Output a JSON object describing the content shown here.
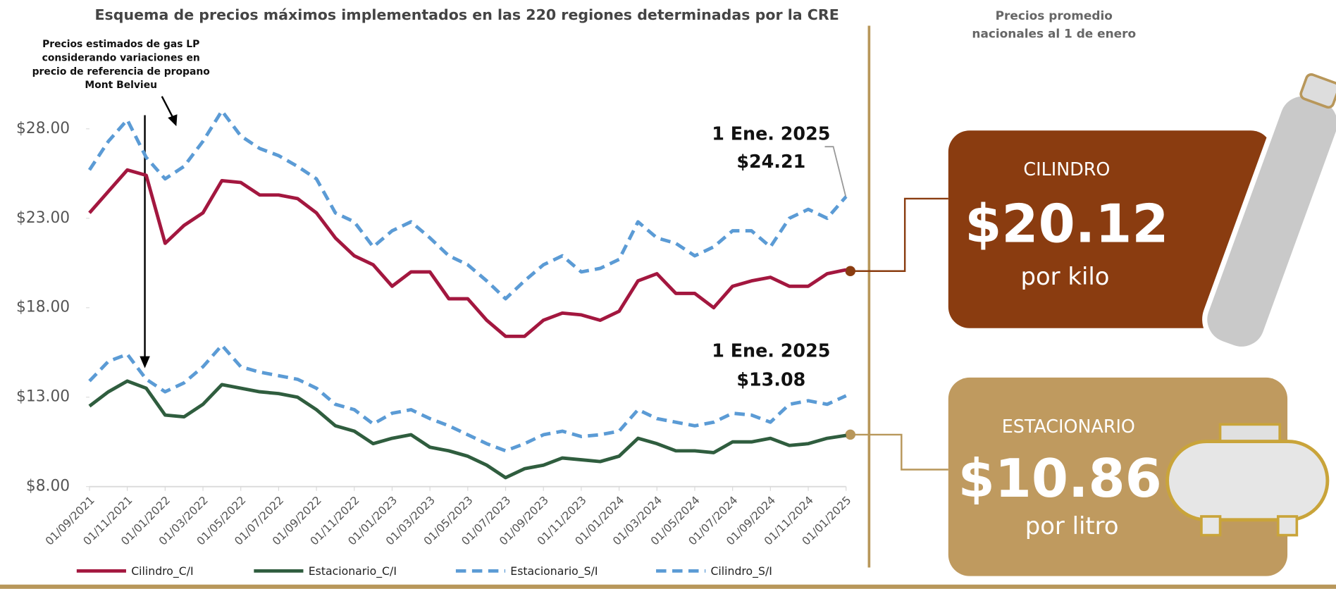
{
  "chart_data": {
    "type": "line",
    "title": "Esquema de precios máximos implementados en las 220 regiones determinadas por la CRE",
    "x": [
      "01/09/2021",
      "01/10/2021",
      "01/11/2021",
      "01/12/2021",
      "01/01/2022",
      "01/02/2022",
      "01/03/2022",
      "01/04/2022",
      "01/05/2022",
      "01/06/2022",
      "01/07/2022",
      "01/08/2022",
      "01/09/2022",
      "01/10/2022",
      "01/11/2022",
      "01/12/2022",
      "01/01/2023",
      "01/02/2023",
      "01/03/2023",
      "01/04/2023",
      "01/05/2023",
      "01/06/2023",
      "01/07/2023",
      "01/08/2023",
      "01/09/2023",
      "01/10/2023",
      "01/11/2023",
      "01/12/2023",
      "01/01/2024",
      "01/02/2024",
      "01/03/2024",
      "01/04/2024",
      "01/05/2024",
      "01/06/2024",
      "01/07/2024",
      "01/08/2024",
      "01/09/2024",
      "01/10/2024",
      "01/11/2024",
      "01/12/2024",
      "01/01/2025"
    ],
    "xticks": [
      "01/09/2021",
      "01/11/2021",
      "01/01/2022",
      "01/03/2022",
      "01/05/2022",
      "01/07/2022",
      "01/09/2022",
      "01/11/2022",
      "01/01/2023",
      "01/03/2023",
      "01/05/2023",
      "01/07/2023",
      "01/09/2023",
      "01/11/2023",
      "01/01/2024",
      "01/03/2024",
      "01/05/2024",
      "01/07/2024",
      "01/09/2024",
      "01/11/2024",
      "01/01/2025"
    ],
    "ylim": [
      8,
      31
    ],
    "yticks": [
      {
        "value": 8,
        "label": "$8.00"
      },
      {
        "value": 13,
        "label": "$13.00"
      },
      {
        "value": 18,
        "label": "$18.00"
      },
      {
        "value": 23,
        "label": "$23.00"
      },
      {
        "value": 28,
        "label": "$28.00"
      }
    ],
    "series": [
      {
        "name": "Cilindro_C/I",
        "color": "#a3173f",
        "dashed": false,
        "values": [
          23.3,
          24.5,
          25.7,
          25.4,
          21.6,
          22.6,
          23.3,
          25.1,
          25.0,
          24.3,
          24.3,
          24.1,
          23.3,
          21.9,
          20.9,
          20.4,
          19.2,
          20.0,
          20.0,
          18.5,
          18.5,
          17.3,
          16.4,
          16.4,
          17.3,
          17.7,
          17.6,
          17.3,
          17.8,
          19.5,
          19.9,
          18.8,
          18.8,
          18.0,
          19.2,
          19.5,
          19.7,
          19.2,
          19.2,
          19.9,
          20.12
        ]
      },
      {
        "name": "Estacionario_C/I",
        "color": "#2f5d3e",
        "dashed": false,
        "values": [
          12.5,
          13.3,
          13.9,
          13.5,
          12.0,
          11.9,
          12.6,
          13.7,
          13.5,
          13.3,
          13.2,
          13.0,
          12.3,
          11.4,
          11.1,
          10.4,
          10.7,
          10.9,
          10.2,
          10.0,
          9.7,
          9.2,
          8.5,
          9.0,
          9.2,
          9.6,
          9.5,
          9.4,
          9.7,
          10.7,
          10.4,
          10.0,
          10.0,
          9.9,
          10.5,
          10.5,
          10.7,
          10.3,
          10.4,
          10.7,
          10.86
        ]
      },
      {
        "name": "Estacionario_S/I",
        "color": "#5b9bd5",
        "dashed": true,
        "values": [
          13.9,
          15.0,
          15.4,
          14.0,
          13.3,
          13.8,
          14.7,
          15.9,
          14.7,
          14.4,
          14.2,
          14.0,
          13.5,
          12.6,
          12.3,
          11.5,
          12.1,
          12.3,
          11.8,
          11.4,
          10.9,
          10.4,
          10.0,
          10.4,
          10.9,
          11.1,
          10.8,
          10.9,
          11.1,
          12.3,
          11.8,
          11.6,
          11.4,
          11.6,
          12.1,
          12.0,
          11.6,
          12.6,
          12.8,
          12.6,
          13.08
        ]
      },
      {
        "name": "Cilindro_S/I",
        "color": "#5b9bd5",
        "dashed": true,
        "values": [
          25.7,
          27.3,
          28.5,
          26.4,
          25.2,
          25.9,
          27.3,
          29.0,
          27.6,
          26.9,
          26.5,
          25.9,
          25.2,
          23.3,
          22.8,
          21.4,
          22.3,
          22.8,
          21.9,
          20.9,
          20.4,
          19.5,
          18.5,
          19.5,
          20.4,
          20.9,
          20.0,
          20.2,
          20.7,
          22.8,
          21.9,
          21.6,
          20.9,
          21.4,
          22.3,
          22.3,
          21.4,
          23.0,
          23.5,
          23.0,
          24.21
        ]
      }
    ],
    "annotations": [
      {
        "lines": [
          "Precios estimados de gas LP",
          "considerando variaciones en",
          "precio de referencia de propano",
          "Mont Belvieu"
        ]
      },
      {
        "lines": [
          "1 Ene. 2025",
          "$24.21"
        ]
      },
      {
        "lines": [
          "1 Ene. 2025",
          "$13.08"
        ]
      }
    ]
  },
  "side_panel": {
    "title": [
      "Precios promedio",
      "nacionales al 1 de enero"
    ],
    "cards": [
      {
        "label": "CILINDRO",
        "price": "$20.12",
        "unit": "por kilo"
      },
      {
        "label": "ESTACIONARIO",
        "price": "$10.86",
        "unit": "por litro"
      }
    ]
  }
}
